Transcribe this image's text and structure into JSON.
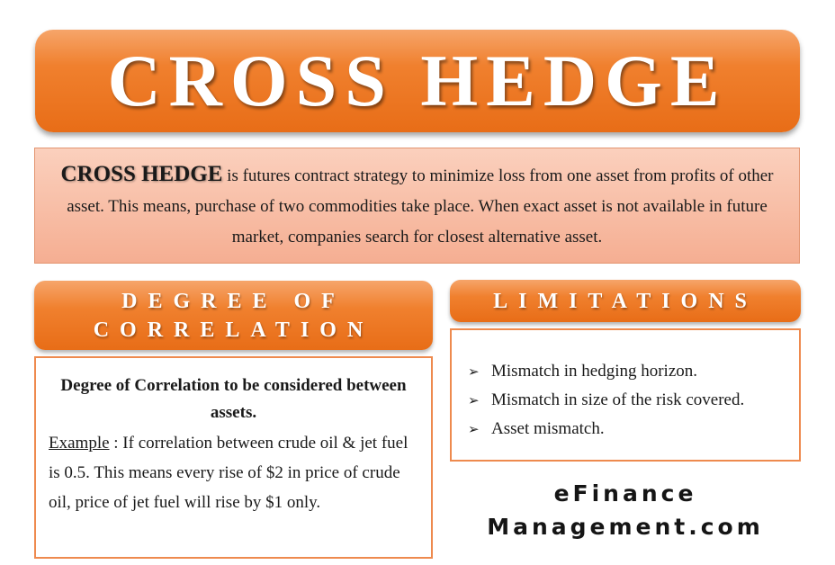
{
  "title": "CROSS HEDGE",
  "definition": {
    "term": "CROSS HEDGE",
    "text": " is futures contract strategy to minimize loss from one asset from profits of other asset. This means, purchase of two commodities take place. When exact asset is not available in future market, companies search for closest alternative asset."
  },
  "correlation": {
    "header": "DEGREE OF CORRELATION",
    "heading": "Degree of Correlation to be considered between assets.",
    "example_label": "Example",
    "example_text": " : If correlation between crude oil & jet fuel is 0.5. This means every rise of $2 in price of crude oil, price of jet fuel will rise by $1 only."
  },
  "limitations": {
    "header": "LIMITATIONS",
    "items": [
      "Mismatch in hedging horizon.",
      "Mismatch in size of the risk covered.",
      "Asset mismatch."
    ]
  },
  "brand": {
    "line1": "eFinance",
    "line2": "Management.com"
  },
  "colors": {
    "accent": "#ef7d2a",
    "definition_bg": "#f8bea4",
    "panel_border": "#ee8a4e"
  },
  "icons": {
    "bullet": "arrowhead-bullet-icon"
  }
}
